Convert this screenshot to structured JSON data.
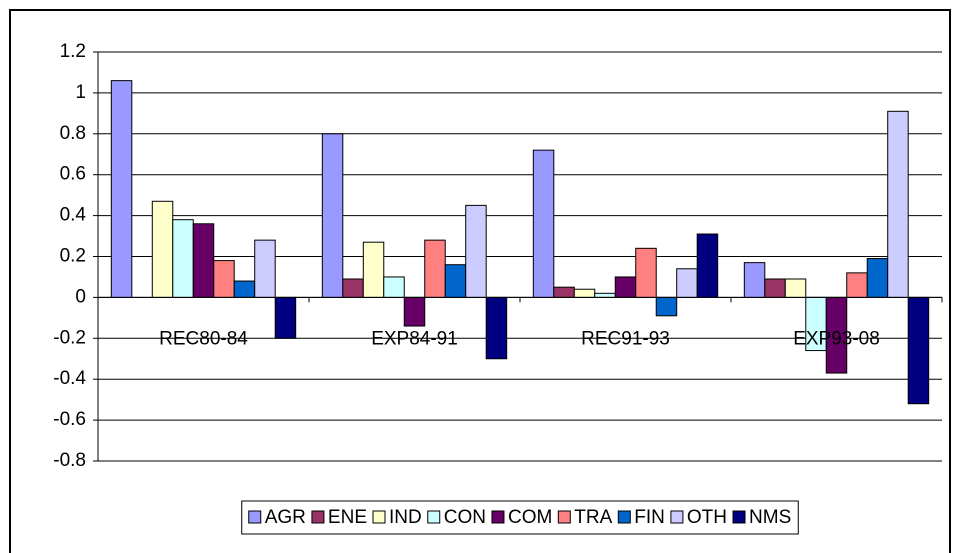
{
  "chart_data": {
    "type": "bar",
    "categories": [
      "REC80-84",
      "EXP84-91",
      "REC91-93",
      "EXP93-08"
    ],
    "series": [
      {
        "name": "AGR",
        "color": "#9999ff",
        "values": [
          1.06,
          0.8,
          0.72,
          0.17
        ]
      },
      {
        "name": "ENE",
        "color": "#993366",
        "values": [
          0,
          0.09,
          0.05,
          0.09
        ]
      },
      {
        "name": "IND",
        "color": "#ffffcc",
        "values": [
          0.47,
          0.27,
          0.04,
          0.09
        ]
      },
      {
        "name": "CON",
        "color": "#ccffff",
        "values": [
          0.38,
          0.1,
          0.02,
          -0.26
        ]
      },
      {
        "name": "COM",
        "color": "#660066",
        "values": [
          0.36,
          -0.14,
          0.1,
          -0.37
        ]
      },
      {
        "name": "TRA",
        "color": "#ff8080",
        "values": [
          0.18,
          0.28,
          0.24,
          0.12
        ]
      },
      {
        "name": "FIN",
        "color": "#0066cc",
        "values": [
          0.08,
          0.16,
          -0.09,
          0.19
        ]
      },
      {
        "name": "OTH",
        "color": "#ccccff",
        "values": [
          0.28,
          0.45,
          0.14,
          0.91
        ]
      },
      {
        "name": "NMS",
        "color": "#000080",
        "values": [
          -0.2,
          -0.3,
          0.31,
          -0.52
        ]
      }
    ],
    "ylim": [
      -0.8,
      1.2
    ],
    "yticks": [
      -0.8,
      -0.6,
      -0.4,
      -0.2,
      0,
      0.2,
      0.4,
      0.6,
      0.8,
      1,
      1.2
    ],
    "grid": true,
    "legend": "bottom"
  }
}
